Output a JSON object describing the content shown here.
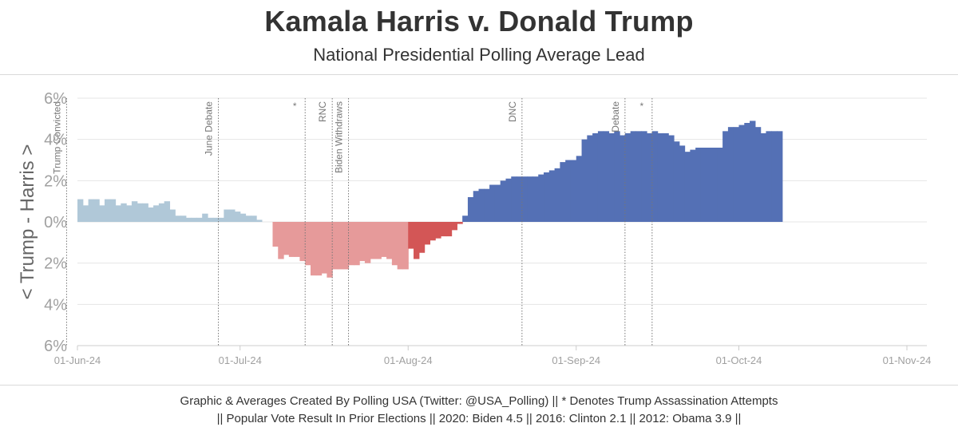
{
  "header": {
    "title": "Kamala Harris v. Donald Trump",
    "subtitle": "National Presidential Polling Average Lead"
  },
  "footer": {
    "line1": "Graphic & Averages Created By Polling USA (Twitter: @USA_Polling) || * Denotes Trump Assassination Attempts",
    "line2": "|| Popular Vote Result In Prior Elections || 2020: Biden 4.5 || 2016: Clinton 2.1 || 2012: Obama 3.9 ||"
  },
  "colors": {
    "trump_biden_era": "#e69a9a",
    "trump_harris_era": "#d35656",
    "biden_lead": "#b0c8d8",
    "harris_lead": "#5470b5",
    "grid": "#e5e5e5",
    "tick_label": "#a0a0a0",
    "event_line": "#777777"
  },
  "chart_data": {
    "type": "area",
    "title": "Kamala Harris v. Donald Trump",
    "subtitle": "National Presidential Polling Average Lead",
    "ylabel": "< Trump - Harris >",
    "xlabel": "",
    "ylim": [
      -6,
      6
    ],
    "yticks": [
      6,
      4,
      2,
      0,
      -2,
      -4,
      -6
    ],
    "ytick_labels": [
      "6%",
      "4%",
      "2%",
      "0%",
      "2%",
      "4%",
      "6%"
    ],
    "xlim": [
      "2024-06-01",
      "2024-11-01"
    ],
    "xticks": [
      "2024-06-01",
      "2024-07-01",
      "2024-08-01",
      "2024-09-01",
      "2024-10-01",
      "2024-11-01"
    ],
    "xtick_labels": [
      "01-Jun-24",
      "01-Jul-24",
      "01-Aug-24",
      "01-Sep-24",
      "01-Oct-24",
      "01-Nov-24"
    ],
    "grid": true,
    "series": [
      {
        "color": "#b0c8d8",
        "points": [
          [
            "2024-06-01",
            1.1
          ],
          [
            "2024-06-02",
            0.8
          ],
          [
            "2024-06-03",
            1.1
          ],
          [
            "2024-06-04",
            1.1
          ],
          [
            "2024-06-05",
            0.8
          ],
          [
            "2024-06-06",
            1.1
          ],
          [
            "2024-06-07",
            1.1
          ],
          [
            "2024-06-08",
            0.8
          ],
          [
            "2024-06-09",
            0.9
          ],
          [
            "2024-06-10",
            0.8
          ],
          [
            "2024-06-11",
            1.0
          ],
          [
            "2024-06-12",
            0.9
          ],
          [
            "2024-06-13",
            0.9
          ],
          [
            "2024-06-14",
            0.7
          ],
          [
            "2024-06-15",
            0.8
          ],
          [
            "2024-06-16",
            0.9
          ],
          [
            "2024-06-17",
            1.0
          ],
          [
            "2024-06-18",
            0.6
          ],
          [
            "2024-06-19",
            0.3
          ],
          [
            "2024-06-20",
            0.3
          ],
          [
            "2024-06-21",
            0.2
          ],
          [
            "2024-06-22",
            0.2
          ],
          [
            "2024-06-23",
            0.2
          ],
          [
            "2024-06-24",
            0.4
          ],
          [
            "2024-06-25",
            0.2
          ],
          [
            "2024-06-26",
            0.2
          ],
          [
            "2024-06-27",
            0.2
          ],
          [
            "2024-06-28",
            0.6
          ],
          [
            "2024-06-29",
            0.6
          ],
          [
            "2024-06-30",
            0.5
          ],
          [
            "2024-07-01",
            0.4
          ],
          [
            "2024-07-02",
            0.3
          ],
          [
            "2024-07-03",
            0.3
          ],
          [
            "2024-07-04",
            0.1
          ]
        ]
      },
      {
        "color": "#e69a9a",
        "points": [
          [
            "2024-07-07",
            -1.2
          ],
          [
            "2024-07-08",
            -1.8
          ],
          [
            "2024-07-09",
            -1.6
          ],
          [
            "2024-07-10",
            -1.7
          ],
          [
            "2024-07-11",
            -1.7
          ],
          [
            "2024-07-12",
            -1.9
          ],
          [
            "2024-07-13",
            -2.1
          ],
          [
            "2024-07-14",
            -2.6
          ],
          [
            "2024-07-15",
            -2.6
          ],
          [
            "2024-07-16",
            -2.5
          ],
          [
            "2024-07-17",
            -2.7
          ],
          [
            "2024-07-18",
            -2.3
          ],
          [
            "2024-07-19",
            -2.3
          ],
          [
            "2024-07-20",
            -2.3
          ],
          [
            "2024-07-21",
            -2.1
          ],
          [
            "2024-07-22",
            -2.1
          ],
          [
            "2024-07-23",
            -1.9
          ],
          [
            "2024-07-24",
            -2.0
          ],
          [
            "2024-07-25",
            -1.8
          ],
          [
            "2024-07-26",
            -1.8
          ],
          [
            "2024-07-27",
            -1.7
          ],
          [
            "2024-07-28",
            -1.8
          ],
          [
            "2024-07-29",
            -2.1
          ],
          [
            "2024-07-30",
            -2.3
          ],
          [
            "2024-07-31",
            -2.3
          ]
        ]
      },
      {
        "color": "#d35656",
        "points": [
          [
            "2024-08-01",
            -1.3
          ],
          [
            "2024-08-02",
            -1.8
          ],
          [
            "2024-08-03",
            -1.5
          ],
          [
            "2024-08-04",
            -1.1
          ],
          [
            "2024-08-05",
            -0.9
          ],
          [
            "2024-08-06",
            -0.8
          ],
          [
            "2024-08-07",
            -0.7
          ],
          [
            "2024-08-08",
            -0.7
          ],
          [
            "2024-08-09",
            -0.4
          ],
          [
            "2024-08-10",
            -0.1
          ]
        ]
      },
      {
        "color": "#5470b5",
        "points": [
          [
            "2024-08-11",
            0.3
          ],
          [
            "2024-08-12",
            1.2
          ],
          [
            "2024-08-13",
            1.5
          ],
          [
            "2024-08-14",
            1.6
          ],
          [
            "2024-08-15",
            1.6
          ],
          [
            "2024-08-16",
            1.8
          ],
          [
            "2024-08-17",
            1.8
          ],
          [
            "2024-08-18",
            2.0
          ],
          [
            "2024-08-19",
            2.1
          ],
          [
            "2024-08-20",
            2.2
          ],
          [
            "2024-08-21",
            2.2
          ],
          [
            "2024-08-22",
            2.2
          ],
          [
            "2024-08-23",
            2.2
          ],
          [
            "2024-08-24",
            2.2
          ],
          [
            "2024-08-25",
            2.3
          ],
          [
            "2024-08-26",
            2.4
          ],
          [
            "2024-08-27",
            2.5
          ],
          [
            "2024-08-28",
            2.6
          ],
          [
            "2024-08-29",
            2.9
          ],
          [
            "2024-08-30",
            3.0
          ],
          [
            "2024-08-31",
            3.0
          ],
          [
            "2024-09-01",
            3.2
          ],
          [
            "2024-09-02",
            4.0
          ],
          [
            "2024-09-03",
            4.2
          ],
          [
            "2024-09-04",
            4.3
          ],
          [
            "2024-09-05",
            4.4
          ],
          [
            "2024-09-06",
            4.4
          ],
          [
            "2024-09-07",
            4.3
          ],
          [
            "2024-09-08",
            4.4
          ],
          [
            "2024-09-09",
            4.2
          ],
          [
            "2024-09-10",
            4.3
          ],
          [
            "2024-09-11",
            4.4
          ],
          [
            "2024-09-12",
            4.4
          ],
          [
            "2024-09-13",
            4.4
          ],
          [
            "2024-09-14",
            4.3
          ],
          [
            "2024-09-15",
            4.4
          ],
          [
            "2024-09-16",
            4.3
          ],
          [
            "2024-09-17",
            4.3
          ],
          [
            "2024-09-18",
            4.2
          ],
          [
            "2024-09-19",
            3.9
          ],
          [
            "2024-09-20",
            3.7
          ],
          [
            "2024-09-21",
            3.4
          ],
          [
            "2024-09-22",
            3.5
          ],
          [
            "2024-09-23",
            3.6
          ],
          [
            "2024-09-24",
            3.6
          ],
          [
            "2024-09-25",
            3.6
          ],
          [
            "2024-09-26",
            3.6
          ],
          [
            "2024-09-27",
            3.6
          ],
          [
            "2024-09-28",
            4.4
          ],
          [
            "2024-09-29",
            4.6
          ],
          [
            "2024-09-30",
            4.6
          ],
          [
            "2024-10-01",
            4.7
          ],
          [
            "2024-10-02",
            4.8
          ],
          [
            "2024-10-03",
            4.9
          ],
          [
            "2024-10-04",
            4.6
          ],
          [
            "2024-10-05",
            4.3
          ],
          [
            "2024-10-06",
            4.4
          ],
          [
            "2024-10-07",
            4.4
          ],
          [
            "2024-10-08",
            4.4
          ]
        ]
      }
    ],
    "events": [
      {
        "date": "2024-05-30",
        "label": "Trump Convicted"
      },
      {
        "date": "2024-06-27",
        "label": "June Debate"
      },
      {
        "date": "2024-07-13",
        "label": "*"
      },
      {
        "date": "2024-07-18",
        "label": "RNC"
      },
      {
        "date": "2024-07-21",
        "label": "Biden Withdraws"
      },
      {
        "date": "2024-08-22",
        "label": "DNC"
      },
      {
        "date": "2024-09-10",
        "label": "Debate"
      },
      {
        "date": "2024-09-15",
        "label": "*"
      }
    ]
  }
}
